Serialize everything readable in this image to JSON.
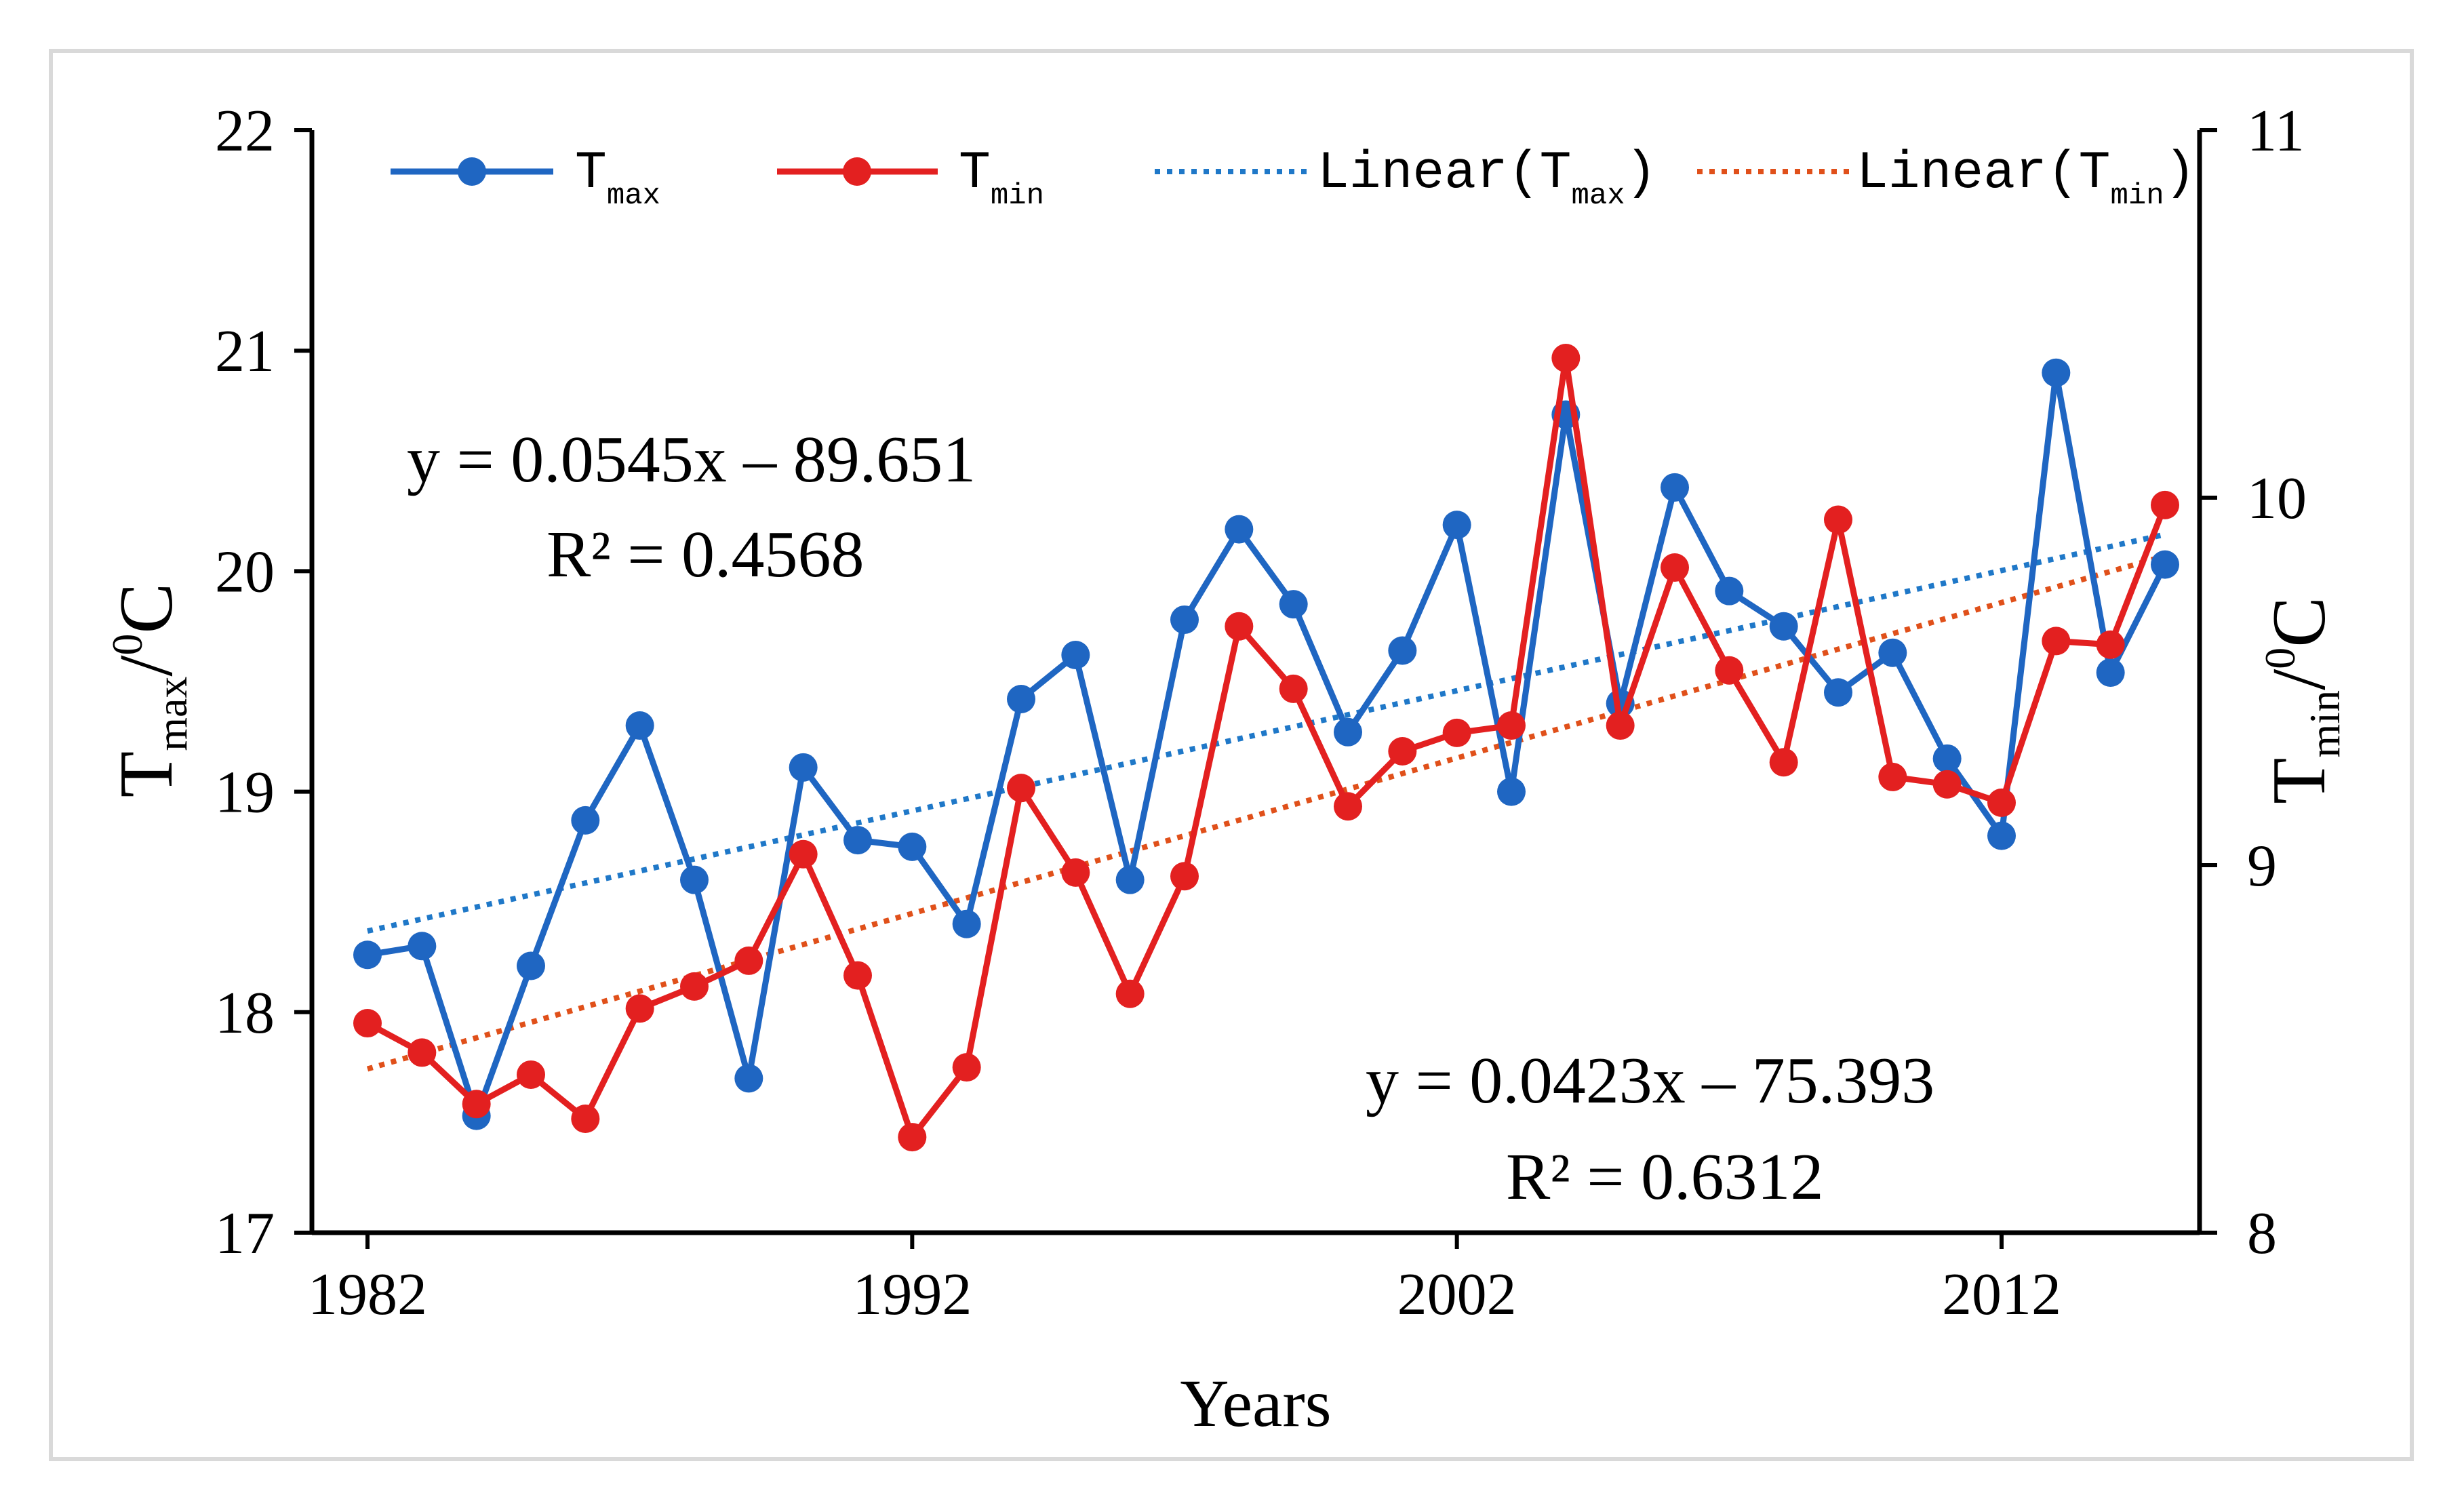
{
  "chart_data": {
    "type": "line",
    "xlabel": "Years",
    "ylabel_left": {
      "main": "T",
      "sub": "max",
      "unit": "/",
      "sup": "0",
      "tail": "C"
    },
    "ylabel_right": {
      "main": "T",
      "sub": "min",
      "unit": "/",
      "sup": "0",
      "tail": "C"
    },
    "xlim": [
      1982,
      2015
    ],
    "ylim_left": [
      17,
      22
    ],
    "ylim_right": [
      8,
      11
    ],
    "xticks": [
      1982,
      1992,
      2002,
      2012
    ],
    "yticks_left": [
      17,
      18,
      19,
      20,
      21,
      22
    ],
    "yticks_right": [
      8,
      9,
      10,
      11
    ],
    "x": [
      1982,
      1983,
      1984,
      1985,
      1986,
      1987,
      1988,
      1989,
      1990,
      1991,
      1992,
      1993,
      1994,
      1995,
      1996,
      1997,
      1998,
      1999,
      2000,
      2001,
      2002,
      2003,
      2004,
      2005,
      2006,
      2007,
      2008,
      2009,
      2010,
      2011,
      2012,
      2013,
      2014,
      2015
    ],
    "series": [
      {
        "name": "Tmax",
        "label_main": "T",
        "label_sub": "max",
        "axis": "left",
        "color": "#1f66c2",
        "values": [
          18.26,
          18.3,
          17.53,
          18.21,
          18.87,
          19.3,
          18.6,
          17.7,
          19.11,
          18.78,
          18.75,
          18.4,
          19.42,
          19.62,
          18.6,
          19.78,
          20.19,
          19.85,
          19.27,
          19.64,
          20.21,
          19.0,
          20.71,
          19.4,
          20.38,
          19.91,
          19.75,
          19.45,
          19.63,
          19.15,
          18.8,
          20.9,
          19.54,
          20.03
        ]
      },
      {
        "name": "Tmin",
        "label_main": "T",
        "label_sub": "min",
        "axis": "right",
        "color": "#e32020",
        "values": [
          8.57,
          8.49,
          8.35,
          8.43,
          8.31,
          8.61,
          8.67,
          8.74,
          9.03,
          8.7,
          8.26,
          8.45,
          9.21,
          8.98,
          8.65,
          8.97,
          9.65,
          9.48,
          9.16,
          9.31,
          9.36,
          9.38,
          10.38,
          9.38,
          9.81,
          9.53,
          9.28,
          9.94,
          9.24,
          9.22,
          9.17,
          9.61,
          9.6,
          9.98
        ]
      }
    ],
    "trendlines": [
      {
        "name": "Linear(Tmax)",
        "label_pre": "Linear(T",
        "label_sub": "max",
        "label_post": ")",
        "axis": "left",
        "color": "#1f78c8",
        "slope": 0.0545,
        "intercept": -89.651,
        "equation": "y = 0.0545x – 89.651",
        "r2_label": "R² = 0.4568"
      },
      {
        "name": "Linear(Tmin)",
        "label_pre": "Linear(T",
        "label_sub": "min",
        "label_post": ")",
        "axis": "right",
        "color": "#e0501a",
        "slope": 0.0423,
        "intercept": -75.393,
        "equation": "y = 0.0423x – 75.393",
        "r2_label": "R² = 0.6312"
      }
    ],
    "legend_position": "top",
    "grid": false
  }
}
